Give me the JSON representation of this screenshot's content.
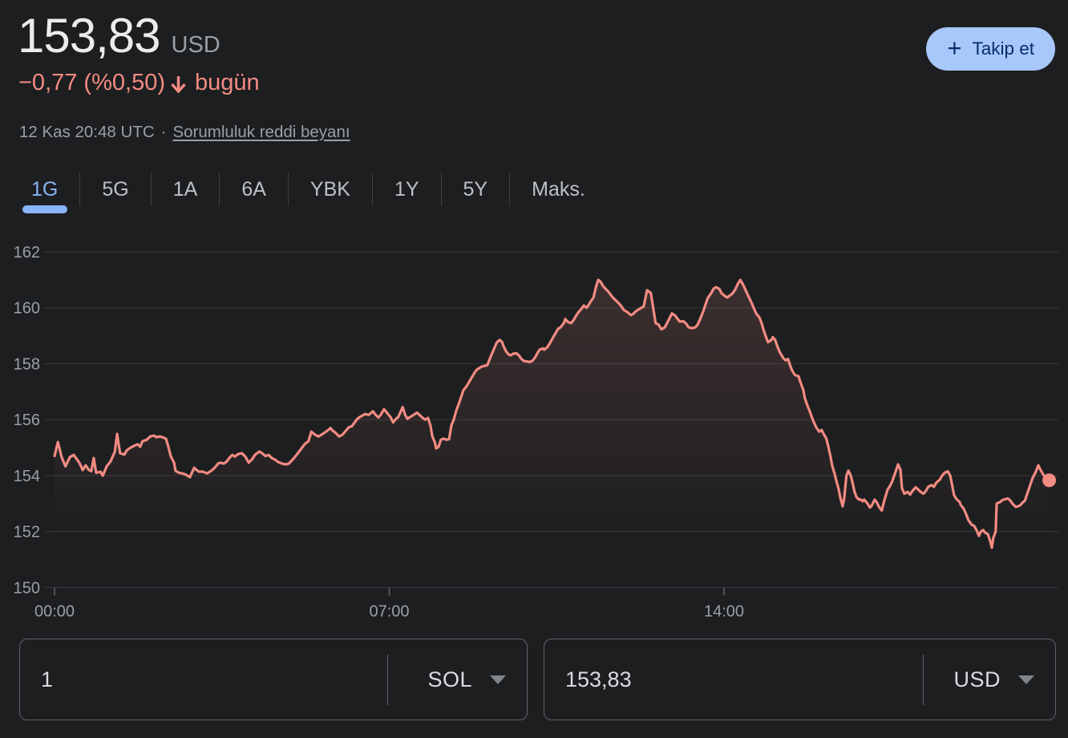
{
  "colors": {
    "background": "#1d1e20",
    "negative": "#f28b82",
    "accent_blue": "#8ab4f8",
    "button_bg": "#a8c7fa",
    "button_fg": "#062e6f",
    "text_primary": "#ececec",
    "text_secondary": "#9aa0a6",
    "gridline": "#37393c",
    "border": "#5f6368"
  },
  "header": {
    "price": "153,83",
    "currency": "USD",
    "change": "−0,77 (%0,50)",
    "change_direction": "down",
    "change_period": "bugün",
    "timestamp": "12 Kas 20:48 UTC",
    "separator": "·",
    "disclaimer_link": "Sorumluluk reddi beyanı",
    "follow_button": {
      "icon_glyph": "+",
      "label": "Takip et"
    }
  },
  "tabs": {
    "items": [
      "1G",
      "5G",
      "1A",
      "6A",
      "YBK",
      "1Y",
      "5Y",
      "Maks."
    ],
    "selected": "1G"
  },
  "chart_data": {
    "type": "line",
    "line_color": "#f28b82",
    "area_fill_top": "rgba(242,139,130,0.15)",
    "grid": true,
    "legend": "none",
    "ylim": [
      149.8,
      162.7
    ],
    "y_ticks": [
      150,
      152,
      154,
      156,
      158,
      160,
      162
    ],
    "x_ticks": [
      {
        "t": 0,
        "label": "00:00"
      },
      {
        "t": 7,
        "label": "07:00"
      },
      {
        "t": 14,
        "label": "14:00"
      }
    ],
    "x_unit": "hours UTC",
    "end_marker": true,
    "points": [
      [
        0.0,
        154.7
      ],
      [
        0.07,
        155.2
      ],
      [
        0.15,
        154.66
      ],
      [
        0.23,
        154.33
      ],
      [
        0.32,
        154.66
      ],
      [
        0.4,
        154.74
      ],
      [
        0.52,
        154.46
      ],
      [
        0.59,
        154.2
      ],
      [
        0.65,
        154.37
      ],
      [
        0.72,
        154.2
      ],
      [
        0.77,
        154.16
      ],
      [
        0.82,
        154.63
      ],
      [
        0.87,
        154.1
      ],
      [
        0.96,
        154.14
      ],
      [
        1.01,
        154.0
      ],
      [
        1.09,
        154.33
      ],
      [
        1.17,
        154.5
      ],
      [
        1.26,
        154.85
      ],
      [
        1.31,
        155.49
      ],
      [
        1.37,
        154.8
      ],
      [
        1.46,
        154.75
      ],
      [
        1.51,
        154.9
      ],
      [
        1.59,
        155.0
      ],
      [
        1.66,
        155.06
      ],
      [
        1.74,
        155.12
      ],
      [
        1.79,
        155.03
      ],
      [
        1.84,
        155.23
      ],
      [
        1.93,
        155.28
      ],
      [
        2.0,
        155.4
      ],
      [
        2.08,
        155.43
      ],
      [
        2.13,
        155.37
      ],
      [
        2.2,
        155.4
      ],
      [
        2.26,
        155.37
      ],
      [
        2.33,
        155.32
      ],
      [
        2.38,
        155.03
      ],
      [
        2.43,
        154.7
      ],
      [
        2.5,
        154.46
      ],
      [
        2.53,
        154.17
      ],
      [
        2.6,
        154.1
      ],
      [
        2.67,
        154.08
      ],
      [
        2.75,
        154.03
      ],
      [
        2.83,
        153.94
      ],
      [
        2.92,
        154.28
      ],
      [
        2.97,
        154.2
      ],
      [
        3.02,
        154.14
      ],
      [
        3.1,
        154.14
      ],
      [
        3.19,
        154.08
      ],
      [
        3.27,
        154.16
      ],
      [
        3.35,
        154.28
      ],
      [
        3.42,
        154.43
      ],
      [
        3.47,
        154.46
      ],
      [
        3.54,
        154.43
      ],
      [
        3.6,
        154.5
      ],
      [
        3.67,
        154.66
      ],
      [
        3.72,
        154.74
      ],
      [
        3.77,
        154.68
      ],
      [
        3.84,
        154.77
      ],
      [
        3.92,
        154.8
      ],
      [
        3.99,
        154.68
      ],
      [
        4.06,
        154.46
      ],
      [
        4.14,
        154.6
      ],
      [
        4.19,
        154.74
      ],
      [
        4.28,
        154.86
      ],
      [
        4.34,
        154.8
      ],
      [
        4.41,
        154.7
      ],
      [
        4.48,
        154.74
      ],
      [
        4.54,
        154.63
      ],
      [
        4.61,
        154.57
      ],
      [
        4.68,
        154.48
      ],
      [
        4.76,
        154.43
      ],
      [
        4.83,
        154.4
      ],
      [
        4.9,
        154.43
      ],
      [
        4.98,
        154.57
      ],
      [
        5.06,
        154.74
      ],
      [
        5.15,
        154.94
      ],
      [
        5.23,
        155.12
      ],
      [
        5.31,
        155.23
      ],
      [
        5.37,
        155.57
      ],
      [
        5.45,
        155.46
      ],
      [
        5.52,
        155.4
      ],
      [
        5.58,
        155.46
      ],
      [
        5.65,
        155.54
      ],
      [
        5.7,
        155.6
      ],
      [
        5.77,
        155.7
      ],
      [
        5.82,
        155.6
      ],
      [
        5.87,
        155.54
      ],
      [
        5.95,
        155.4
      ],
      [
        6.02,
        155.46
      ],
      [
        6.09,
        155.6
      ],
      [
        6.15,
        155.72
      ],
      [
        6.22,
        155.77
      ],
      [
        6.32,
        156.0
      ],
      [
        6.37,
        156.08
      ],
      [
        6.49,
        156.2
      ],
      [
        6.57,
        156.17
      ],
      [
        6.66,
        156.3
      ],
      [
        6.71,
        156.18
      ],
      [
        6.77,
        156.08
      ],
      [
        6.82,
        156.17
      ],
      [
        6.89,
        156.37
      ],
      [
        6.96,
        156.23
      ],
      [
        7.03,
        156.08
      ],
      [
        7.08,
        155.9
      ],
      [
        7.14,
        156.03
      ],
      [
        7.19,
        156.1
      ],
      [
        7.28,
        156.45
      ],
      [
        7.33,
        156.17
      ],
      [
        7.38,
        156.03
      ],
      [
        7.44,
        156.1
      ],
      [
        7.51,
        156.17
      ],
      [
        7.58,
        156.25
      ],
      [
        7.63,
        156.17
      ],
      [
        7.7,
        156.06
      ],
      [
        7.75,
        156.0
      ],
      [
        7.81,
        156.06
      ],
      [
        7.86,
        155.8
      ],
      [
        7.9,
        155.4
      ],
      [
        7.95,
        155.2
      ],
      [
        7.98,
        154.97
      ],
      [
        8.03,
        155.03
      ],
      [
        8.08,
        155.28
      ],
      [
        8.13,
        155.32
      ],
      [
        8.2,
        155.28
      ],
      [
        8.25,
        155.3
      ],
      [
        8.3,
        155.8
      ],
      [
        8.35,
        156.0
      ],
      [
        8.4,
        156.32
      ],
      [
        8.45,
        156.55
      ],
      [
        8.5,
        156.8
      ],
      [
        8.55,
        157.05
      ],
      [
        8.62,
        157.2
      ],
      [
        8.67,
        157.35
      ],
      [
        8.72,
        157.5
      ],
      [
        8.79,
        157.7
      ],
      [
        8.84,
        157.8
      ],
      [
        8.94,
        157.9
      ],
      [
        9.05,
        157.95
      ],
      [
        9.12,
        158.25
      ],
      [
        9.17,
        158.45
      ],
      [
        9.25,
        158.77
      ],
      [
        9.31,
        158.85
      ],
      [
        9.36,
        158.77
      ],
      [
        9.39,
        158.63
      ],
      [
        9.44,
        158.45
      ],
      [
        9.49,
        158.34
      ],
      [
        9.54,
        158.3
      ],
      [
        9.59,
        158.36
      ],
      [
        9.66,
        158.37
      ],
      [
        9.71,
        158.3
      ],
      [
        9.76,
        158.18
      ],
      [
        9.81,
        158.1
      ],
      [
        9.88,
        158.08
      ],
      [
        9.94,
        158.06
      ],
      [
        9.99,
        158.1
      ],
      [
        10.04,
        158.2
      ],
      [
        10.09,
        158.35
      ],
      [
        10.14,
        158.5
      ],
      [
        10.21,
        158.55
      ],
      [
        10.24,
        158.5
      ],
      [
        10.31,
        158.6
      ],
      [
        10.36,
        158.74
      ],
      [
        10.41,
        158.9
      ],
      [
        10.48,
        159.1
      ],
      [
        10.53,
        159.25
      ],
      [
        10.58,
        159.3
      ],
      [
        10.65,
        159.45
      ],
      [
        10.68,
        159.6
      ],
      [
        10.73,
        159.5
      ],
      [
        10.8,
        159.45
      ],
      [
        10.85,
        159.55
      ],
      [
        10.9,
        159.7
      ],
      [
        10.96,
        159.85
      ],
      [
        11.01,
        159.95
      ],
      [
        11.07,
        160.08
      ],
      [
        11.13,
        160.0
      ],
      [
        11.21,
        160.22
      ],
      [
        11.27,
        160.37
      ],
      [
        11.32,
        160.74
      ],
      [
        11.37,
        161.0
      ],
      [
        11.42,
        160.93
      ],
      [
        11.47,
        160.78
      ],
      [
        11.52,
        160.68
      ],
      [
        11.57,
        160.6
      ],
      [
        11.63,
        160.47
      ],
      [
        11.68,
        160.36
      ],
      [
        11.74,
        160.26
      ],
      [
        11.8,
        160.16
      ],
      [
        11.85,
        160.06
      ],
      [
        11.9,
        159.93
      ],
      [
        11.99,
        159.83
      ],
      [
        12.05,
        159.74
      ],
      [
        12.1,
        159.78
      ],
      [
        12.15,
        159.87
      ],
      [
        12.22,
        159.95
      ],
      [
        12.27,
        160.0
      ],
      [
        12.32,
        160.05
      ],
      [
        12.39,
        160.63
      ],
      [
        12.47,
        160.53
      ],
      [
        12.57,
        159.45
      ],
      [
        12.63,
        159.4
      ],
      [
        12.69,
        159.23
      ],
      [
        12.76,
        159.3
      ],
      [
        12.83,
        159.52
      ],
      [
        12.91,
        159.8
      ],
      [
        12.98,
        159.72
      ],
      [
        13.03,
        159.6
      ],
      [
        13.08,
        159.5
      ],
      [
        13.15,
        159.52
      ],
      [
        13.21,
        159.43
      ],
      [
        13.26,
        159.3
      ],
      [
        13.33,
        159.27
      ],
      [
        13.4,
        159.3
      ],
      [
        13.45,
        159.4
      ],
      [
        13.5,
        159.6
      ],
      [
        13.56,
        159.85
      ],
      [
        13.61,
        160.1
      ],
      [
        13.66,
        160.35
      ],
      [
        13.73,
        160.52
      ],
      [
        13.78,
        160.68
      ],
      [
        13.83,
        160.74
      ],
      [
        13.9,
        160.68
      ],
      [
        13.95,
        160.52
      ],
      [
        14.02,
        160.42
      ],
      [
        14.07,
        160.37
      ],
      [
        14.13,
        160.45
      ],
      [
        14.17,
        160.5
      ],
      [
        14.23,
        160.64
      ],
      [
        14.29,
        160.86
      ],
      [
        14.34,
        161.0
      ],
      [
        14.39,
        160.85
      ],
      [
        14.44,
        160.68
      ],
      [
        14.5,
        160.45
      ],
      [
        14.57,
        160.2
      ],
      [
        14.62,
        160.0
      ],
      [
        14.67,
        159.8
      ],
      [
        14.74,
        159.66
      ],
      [
        14.79,
        159.43
      ],
      [
        14.84,
        159.14
      ],
      [
        14.89,
        158.9
      ],
      [
        14.92,
        158.77
      ],
      [
        14.99,
        158.85
      ],
      [
        15.02,
        158.95
      ],
      [
        15.07,
        158.85
      ],
      [
        15.12,
        158.6
      ],
      [
        15.17,
        158.4
      ],
      [
        15.24,
        158.2
      ],
      [
        15.29,
        158.12
      ],
      [
        15.34,
        158.17
      ],
      [
        15.37,
        158.0
      ],
      [
        15.42,
        157.77
      ],
      [
        15.48,
        157.6
      ],
      [
        15.56,
        157.55
      ],
      [
        15.59,
        157.38
      ],
      [
        15.66,
        157.05
      ],
      [
        15.69,
        156.77
      ],
      [
        15.74,
        156.52
      ],
      [
        15.78,
        156.35
      ],
      [
        15.84,
        156.08
      ],
      [
        15.88,
        155.9
      ],
      [
        15.93,
        155.72
      ],
      [
        15.99,
        155.57
      ],
      [
        16.04,
        155.63
      ],
      [
        16.08,
        155.5
      ],
      [
        16.14,
        155.32
      ],
      [
        16.18,
        155.05
      ],
      [
        16.23,
        154.65
      ],
      [
        16.26,
        154.37
      ],
      [
        16.31,
        154.08
      ],
      [
        16.35,
        153.8
      ],
      [
        16.4,
        153.5
      ],
      [
        16.43,
        153.23
      ],
      [
        16.48,
        152.9
      ],
      [
        16.51,
        153.14
      ],
      [
        16.56,
        154.0
      ],
      [
        16.6,
        154.18
      ],
      [
        16.65,
        154.0
      ],
      [
        16.68,
        153.8
      ],
      [
        16.73,
        153.42
      ],
      [
        16.77,
        153.23
      ],
      [
        16.82,
        153.14
      ],
      [
        16.85,
        153.15
      ],
      [
        16.9,
        153.08
      ],
      [
        16.93,
        153.14
      ],
      [
        17.0,
        153.0
      ],
      [
        17.05,
        152.86
      ],
      [
        17.08,
        152.9
      ],
      [
        17.15,
        153.14
      ],
      [
        17.19,
        153.05
      ],
      [
        17.25,
        152.86
      ],
      [
        17.3,
        152.75
      ],
      [
        17.35,
        153.1
      ],
      [
        17.42,
        153.5
      ],
      [
        17.47,
        153.63
      ],
      [
        17.52,
        153.8
      ],
      [
        17.64,
        154.4
      ],
      [
        17.69,
        154.2
      ],
      [
        17.72,
        153.55
      ],
      [
        17.77,
        153.35
      ],
      [
        17.84,
        153.42
      ],
      [
        17.89,
        153.32
      ],
      [
        17.94,
        153.45
      ],
      [
        18.01,
        153.58
      ],
      [
        18.06,
        153.5
      ],
      [
        18.11,
        153.42
      ],
      [
        18.17,
        153.35
      ],
      [
        18.22,
        153.45
      ],
      [
        18.27,
        153.6
      ],
      [
        18.34,
        153.66
      ],
      [
        18.39,
        153.6
      ],
      [
        18.44,
        153.75
      ],
      [
        18.51,
        153.85
      ],
      [
        18.56,
        154.0
      ],
      [
        18.61,
        154.1
      ],
      [
        18.68,
        154.15
      ],
      [
        18.73,
        154.0
      ],
      [
        18.76,
        153.75
      ],
      [
        18.81,
        153.3
      ],
      [
        18.86,
        153.16
      ],
      [
        18.93,
        153.05
      ],
      [
        18.95,
        152.95
      ],
      [
        19.01,
        152.82
      ],
      [
        19.06,
        152.63
      ],
      [
        19.11,
        152.4
      ],
      [
        19.18,
        152.24
      ],
      [
        19.23,
        152.2
      ],
      [
        19.28,
        152.05
      ],
      [
        19.33,
        151.84
      ],
      [
        19.37,
        152.0
      ],
      [
        19.42,
        152.05
      ],
      [
        19.45,
        151.97
      ],
      [
        19.52,
        151.9
      ],
      [
        19.57,
        151.63
      ],
      [
        19.6,
        151.42
      ],
      [
        19.63,
        151.77
      ],
      [
        19.68,
        152.0
      ],
      [
        19.7,
        153.0
      ],
      [
        19.77,
        153.05
      ],
      [
        19.82,
        153.12
      ],
      [
        19.87,
        153.15
      ],
      [
        19.93,
        153.18
      ],
      [
        19.98,
        153.12
      ],
      [
        20.03,
        153.0
      ],
      [
        20.1,
        152.88
      ],
      [
        20.15,
        152.9
      ],
      [
        20.2,
        152.95
      ],
      [
        20.25,
        153.05
      ],
      [
        20.29,
        153.1
      ],
      [
        20.35,
        153.4
      ],
      [
        20.4,
        153.65
      ],
      [
        20.45,
        153.9
      ],
      [
        20.52,
        154.14
      ],
      [
        20.57,
        154.37
      ],
      [
        20.62,
        154.2
      ],
      [
        20.69,
        154.0
      ],
      [
        20.74,
        153.85
      ],
      [
        20.8,
        153.83
      ]
    ]
  },
  "converter": {
    "from": {
      "value": "1",
      "unit": "SOL"
    },
    "to": {
      "value": "153,83",
      "unit": "USD"
    }
  }
}
